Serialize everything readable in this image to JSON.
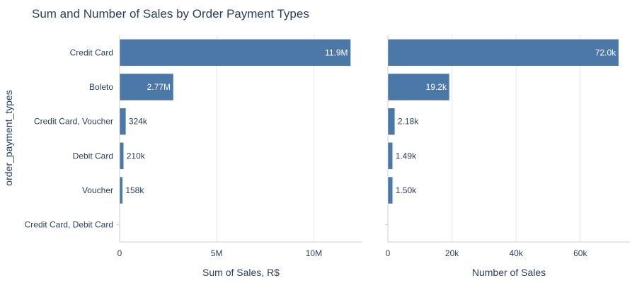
{
  "chart_data": {
    "type": "bar",
    "orientation": "horizontal",
    "title": "Sum and Number of Sales by Order Payment Types",
    "ylabel": "order_payment_types",
    "categories": [
      "Credit Card",
      "Boleto",
      "Credit Card, Voucher",
      "Debit Card",
      "Voucher",
      "Credit Card, Debit Card"
    ],
    "bar_color": "#4c78a8",
    "panels": [
      {
        "xlabel": "Sum of Sales, R$",
        "xlim": [
          0,
          12500000
        ],
        "ticks": [
          0,
          5000000,
          10000000
        ],
        "tick_labels": [
          "0",
          "5M",
          "10M"
        ],
        "values": [
          11900000,
          2770000,
          324000,
          210000,
          158000,
          0
        ],
        "data_labels": [
          "11.9M",
          "2.77M",
          "324k",
          "210k",
          "158k",
          ""
        ]
      },
      {
        "xlabel": "Number of Sales",
        "xlim": [
          0,
          75500
        ],
        "ticks": [
          0,
          20000,
          40000,
          60000
        ],
        "tick_labels": [
          "0",
          "20k",
          "40k",
          "60k"
        ],
        "values": [
          72000,
          19200,
          2180,
          1490,
          1500,
          0
        ],
        "data_labels": [
          "72.0k",
          "19.2k",
          "2.18k",
          "1.49k",
          "1.50k",
          ""
        ]
      }
    ]
  }
}
